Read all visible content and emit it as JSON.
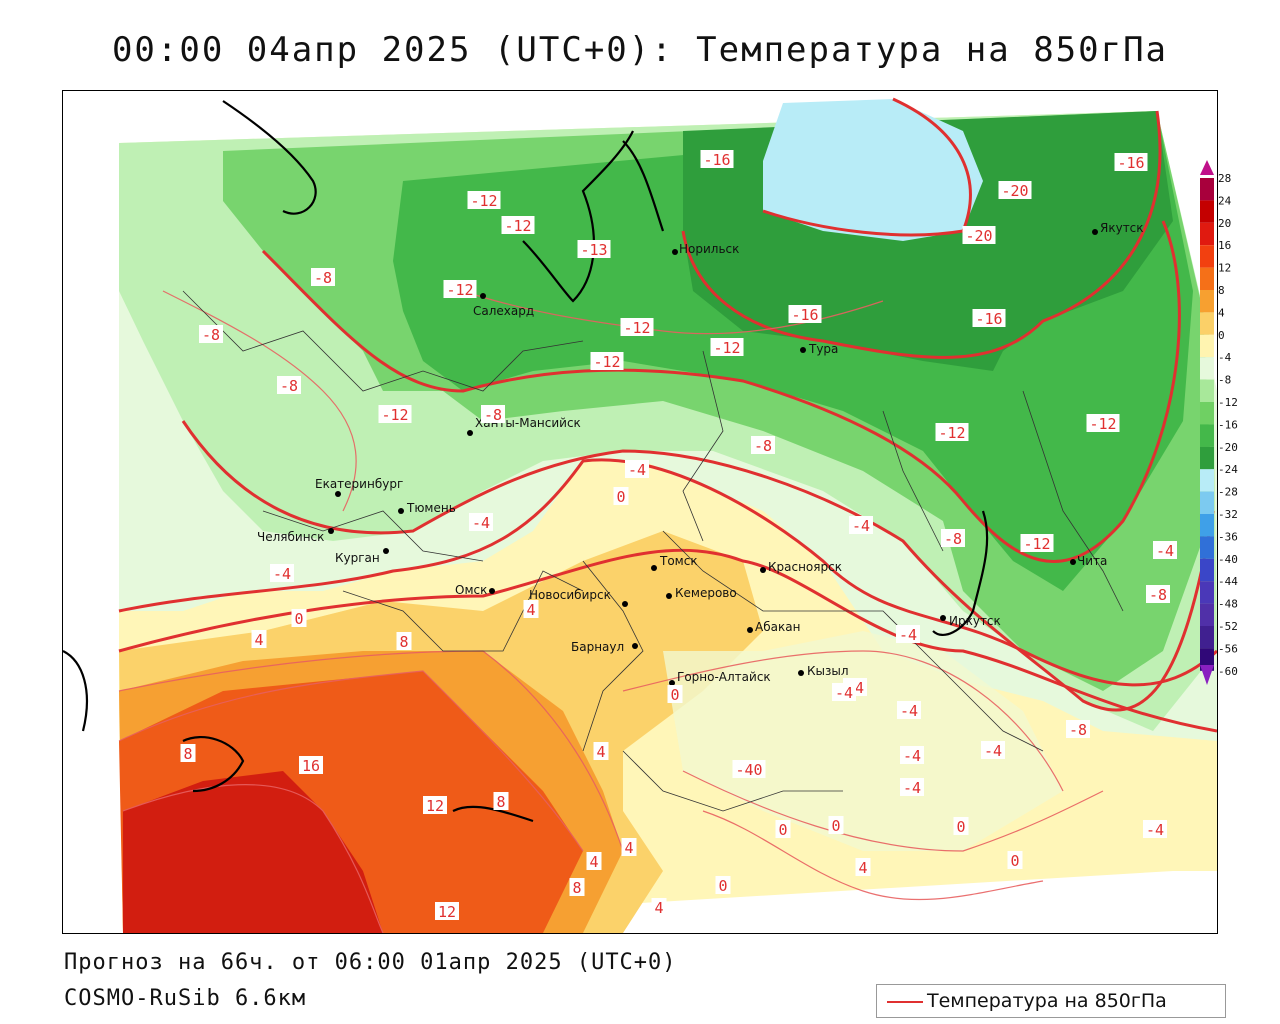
{
  "header": {
    "title": "00:00 04апр 2025 (UTC+0): Температура на 850гПа"
  },
  "footer": {
    "forecast": "Прогноз на 66ч. от 06:00 01апр 2025 (UTC+0)",
    "model": "COSMO-RuSib 6.6км"
  },
  "legend": {
    "line_label": "Температура на 850гПа",
    "line_color": "#e03030"
  },
  "colors": {
    "contour": "#e03030",
    "band_m20": "#b8ecf7",
    "band_m16_m20": "#2f9e3c",
    "band_m12_m16": "#43b84a",
    "band_m8_m12": "#78d46e",
    "band_m4_m8": "#bff0b4",
    "band_0_m4": "#e6f9dc",
    "band_0_4": "#fff6b8",
    "band_4_8": "#fbd26a",
    "band_8_12": "#f6a032",
    "band_12_16": "#ef5b18",
    "band_16_20": "#d21e10"
  },
  "scale": {
    "ticks": [
      "28",
      "24",
      "20",
      "16",
      "12",
      "8",
      "4",
      "0",
      "-4",
      "-8",
      "-12",
      "-16",
      "-20",
      "-24",
      "-28",
      "-32",
      "-36",
      "-40",
      "-44",
      "-48",
      "-52",
      "-56",
      "-60"
    ],
    "colors": [
      "#a8003c",
      "#c40000",
      "#e01a10",
      "#f24010",
      "#f57018",
      "#f7a030",
      "#fbd068",
      "#fff4b0",
      "#e6f9dc",
      "#a8e89a",
      "#6fd063",
      "#44b84a",
      "#2f9e3c",
      "#b8ecf7",
      "#7ccaf0",
      "#3fa0e8",
      "#3070d8",
      "#3a46c8",
      "#4a38b8",
      "#5030a8",
      "#402090",
      "#300878"
    ]
  },
  "cities": [
    {
      "name": "Норильск"
    },
    {
      "name": "Якутск"
    },
    {
      "name": "Салехард"
    },
    {
      "name": "Тура"
    },
    {
      "name": "Ханты-Мансийск"
    },
    {
      "name": "Екатеринбург"
    },
    {
      "name": "Тюмень"
    },
    {
      "name": "Челябинск"
    },
    {
      "name": "Курган"
    },
    {
      "name": "Омск"
    },
    {
      "name": "Томск"
    },
    {
      "name": "Красноярск"
    },
    {
      "name": "Новосибирск"
    },
    {
      "name": "Кемерово"
    },
    {
      "name": "Абакан"
    },
    {
      "name": "Барнаул"
    },
    {
      "name": "Иркутск"
    },
    {
      "name": "Чита"
    },
    {
      "name": "Горно-Алтайск"
    },
    {
      "name": "Кызыл"
    }
  ],
  "contour_labels": [
    "-16",
    "-16",
    "-20",
    "-20",
    "-12",
    "-12",
    "-13",
    "-8",
    "-12",
    "-16",
    "-16",
    "-12",
    "-12",
    "-8",
    "-8",
    "-12",
    "-8",
    "-12",
    "-12",
    "-8",
    "-12",
    "-4",
    "0",
    "-4",
    "-4",
    "-8",
    "-12",
    "-4",
    "-8",
    "-4",
    "0",
    "4",
    "4",
    "8",
    "0",
    "-4",
    "-4",
    "-4",
    "-4",
    "-4",
    "-8",
    "-4",
    "-4",
    "8",
    "16",
    "12",
    "8",
    "4",
    "-40",
    "0",
    "0",
    "0",
    "4",
    "0",
    "4",
    "8",
    "12",
    "4",
    "0",
    "4",
    "-4"
  ]
}
